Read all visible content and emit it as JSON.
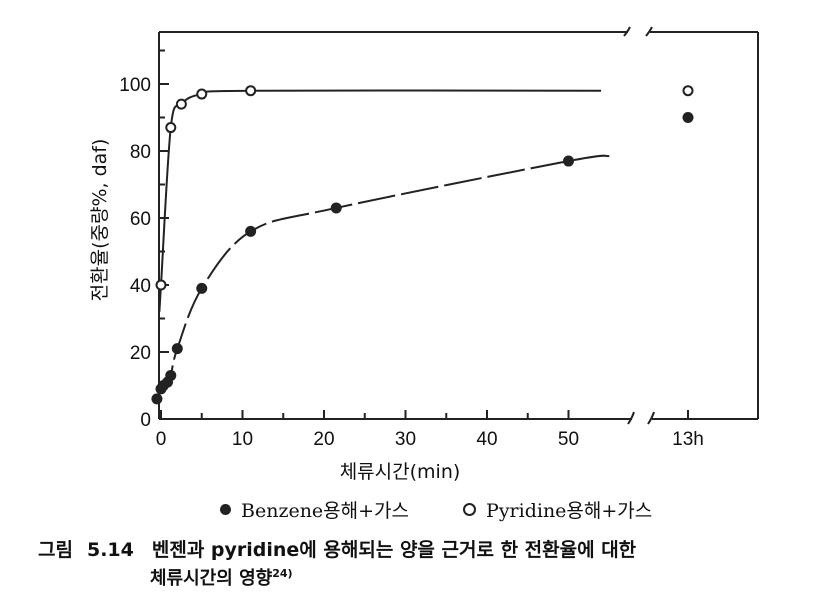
{
  "chart_data": {
    "type": "line",
    "ylabel": "전환율(중량%, daf)",
    "xlabel": "체류시간(min)",
    "xlim": [
      0,
      55
    ],
    "ylim": [
      0,
      110
    ],
    "x_ticks": [
      "0",
      "10",
      "20",
      "30",
      "40",
      "50"
    ],
    "x_break_tick": "13h",
    "y_ticks": [
      "0",
      "20",
      "40",
      "60",
      "80",
      "100"
    ],
    "series": [
      {
        "name": "Benzene용해+가스",
        "marker": "filled",
        "points": [
          [
            -0.5,
            6
          ],
          [
            0,
            9
          ],
          [
            0.3,
            10
          ],
          [
            0.8,
            11
          ],
          [
            1.2,
            13
          ],
          [
            2,
            21
          ],
          [
            5,
            39
          ],
          [
            11,
            56
          ],
          [
            21.5,
            63
          ],
          [
            50,
            77
          ]
        ],
        "point_13h": 90
      },
      {
        "name": "Pyridine용해+가스",
        "marker": "open",
        "points": [
          [
            0,
            40
          ],
          [
            1.2,
            87
          ],
          [
            2.5,
            94
          ],
          [
            5,
            97
          ],
          [
            11,
            98
          ]
        ],
        "point_13h": 98
      }
    ],
    "grid": false
  },
  "legend": {
    "benzene_label": "Benzene용해+가스",
    "pyridine_label": "Pyridine용해+가스"
  },
  "caption": {
    "label": "그림",
    "number": "5.14",
    "line1": "벤젠과 pyridine에 용해되는 양을 근거로 한 전환율에 대한",
    "line2": "체류시간의 영향",
    "ref": "24)"
  },
  "colors": {
    "ink": "#222222"
  }
}
